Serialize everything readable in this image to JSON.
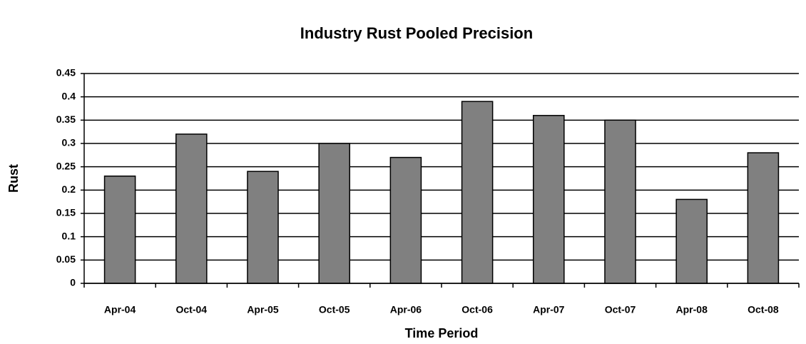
{
  "chart_data": {
    "type": "bar",
    "title": "Industry Rust Pooled Precision",
    "x_label": "Time Period",
    "y_label": "Rust",
    "categories": [
      "Apr-04",
      "Oct-04",
      "Apr-05",
      "Oct-05",
      "Apr-06",
      "Oct-06",
      "Apr-07",
      "Oct-07",
      "Apr-08",
      "Oct-08"
    ],
    "values": [
      0.23,
      0.32,
      0.24,
      0.3,
      0.27,
      0.39,
      0.36,
      0.35,
      0.18,
      0.28
    ],
    "color": "#808080",
    "ylim": [
      0,
      0.45
    ],
    "yticks": [
      0,
      0.05,
      0.1,
      0.15,
      0.2,
      0.25,
      0.3,
      0.35,
      0.4,
      0.45
    ],
    "grid": true
  }
}
